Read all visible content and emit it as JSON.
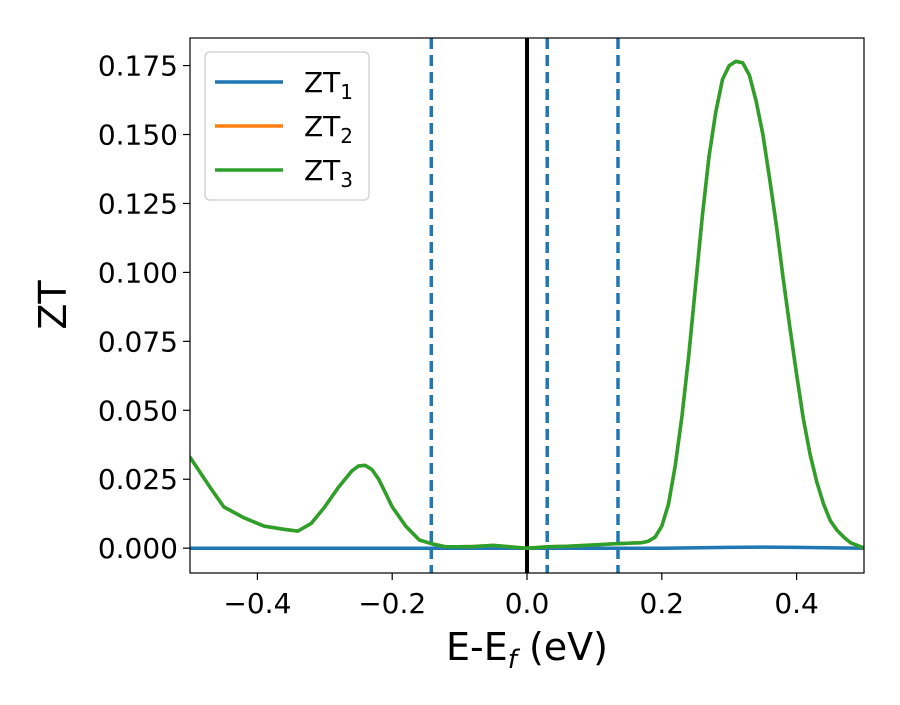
{
  "colors": {
    "series1": "#1f77b4",
    "series2": "#ff7f0e",
    "series3": "#2ca02c",
    "vline_solid": "#000000",
    "vline_dashed": "#1f77b4"
  },
  "chart_data": {
    "type": "line",
    "xlabel": "E-E",
    "xlabel_sub": "f",
    "xlabel_tail": " (eV)",
    "ylabel": "ZT",
    "xlim": [
      -0.5,
      0.5
    ],
    "ylim": [
      -0.009,
      0.185
    ],
    "grid": false,
    "legend_position": "top-left",
    "x_ticks": [
      -0.4,
      -0.2,
      0.0,
      0.2,
      0.4
    ],
    "x_tick_labels": [
      "−0.4",
      "−0.2",
      "0.0",
      "0.2",
      "0.4"
    ],
    "y_ticks": [
      0.0,
      0.025,
      0.05,
      0.075,
      0.1,
      0.125,
      0.15,
      0.175
    ],
    "y_tick_labels": [
      "0.000",
      "0.025",
      "0.050",
      "0.075",
      "0.100",
      "0.125",
      "0.150",
      "0.175"
    ],
    "vertical_lines": [
      {
        "x": 0.0,
        "style": "solid"
      },
      {
        "x": -0.142,
        "style": "dashed"
      },
      {
        "x": 0.03,
        "style": "dashed"
      },
      {
        "x": 0.135,
        "style": "dashed"
      }
    ],
    "series": [
      {
        "name": "ZT",
        "sub": "1",
        "color_key": "series1",
        "x": [
          -0.5,
          -0.3,
          -0.1,
          0.0,
          0.1,
          0.2,
          0.3,
          0.35,
          0.4,
          0.5
        ],
        "y": [
          0.0,
          0.0,
          0.0,
          0.0,
          0.0,
          0.0,
          0.0003,
          0.0004,
          0.0003,
          0.0
        ]
      },
      {
        "name": "ZT",
        "sub": "2",
        "color_key": "series2",
        "x": [
          -0.5,
          -0.47,
          -0.45,
          -0.42,
          -0.39,
          -0.36,
          -0.34,
          -0.32,
          -0.3,
          -0.28,
          -0.26,
          -0.25,
          -0.24,
          -0.23,
          -0.22,
          -0.21,
          -0.2,
          -0.18,
          -0.16,
          -0.14,
          -0.12,
          -0.1,
          -0.08,
          -0.05,
          -0.03,
          0.0,
          0.03,
          0.06,
          0.1,
          0.13,
          0.15,
          0.17,
          0.18,
          0.19,
          0.2,
          0.21,
          0.22,
          0.23,
          0.24,
          0.25,
          0.26,
          0.27,
          0.28,
          0.29,
          0.3,
          0.31,
          0.32,
          0.33,
          0.34,
          0.35,
          0.36,
          0.37,
          0.38,
          0.39,
          0.4,
          0.41,
          0.42,
          0.43,
          0.44,
          0.45,
          0.46,
          0.47,
          0.48,
          0.49,
          0.5
        ],
        "y": [
          0.033,
          0.022,
          0.015,
          0.011,
          0.008,
          0.0068,
          0.0062,
          0.009,
          0.015,
          0.022,
          0.028,
          0.0298,
          0.03,
          0.0285,
          0.025,
          0.02,
          0.015,
          0.008,
          0.003,
          0.0015,
          0.0005,
          0.0005,
          0.0006,
          0.001,
          0.0006,
          0.0,
          0.0005,
          0.0007,
          0.0012,
          0.0016,
          0.0018,
          0.002,
          0.0025,
          0.004,
          0.008,
          0.016,
          0.03,
          0.048,
          0.07,
          0.095,
          0.12,
          0.142,
          0.158,
          0.17,
          0.175,
          0.1765,
          0.176,
          0.1715,
          0.162,
          0.15,
          0.134,
          0.117,
          0.098,
          0.08,
          0.063,
          0.047,
          0.034,
          0.024,
          0.016,
          0.01,
          0.0065,
          0.004,
          0.002,
          0.001,
          0.0
        ]
      },
      {
        "name": "ZT",
        "sub": "3",
        "color_key": "series3",
        "x": [
          -0.5,
          -0.47,
          -0.45,
          -0.42,
          -0.39,
          -0.36,
          -0.34,
          -0.32,
          -0.3,
          -0.28,
          -0.26,
          -0.25,
          -0.24,
          -0.23,
          -0.22,
          -0.21,
          -0.2,
          -0.18,
          -0.16,
          -0.14,
          -0.12,
          -0.1,
          -0.08,
          -0.05,
          -0.03,
          0.0,
          0.03,
          0.06,
          0.1,
          0.13,
          0.15,
          0.17,
          0.18,
          0.19,
          0.2,
          0.21,
          0.22,
          0.23,
          0.24,
          0.25,
          0.26,
          0.27,
          0.28,
          0.29,
          0.3,
          0.31,
          0.32,
          0.33,
          0.34,
          0.35,
          0.36,
          0.37,
          0.38,
          0.39,
          0.4,
          0.41,
          0.42,
          0.43,
          0.44,
          0.45,
          0.46,
          0.47,
          0.48,
          0.49,
          0.5
        ],
        "y": [
          0.033,
          0.022,
          0.015,
          0.011,
          0.008,
          0.0068,
          0.0062,
          0.009,
          0.015,
          0.022,
          0.028,
          0.0298,
          0.03,
          0.0285,
          0.025,
          0.02,
          0.015,
          0.008,
          0.003,
          0.0015,
          0.0005,
          0.0005,
          0.0006,
          0.001,
          0.0006,
          0.0,
          0.0005,
          0.0007,
          0.0012,
          0.0016,
          0.0018,
          0.002,
          0.0025,
          0.004,
          0.008,
          0.016,
          0.03,
          0.048,
          0.07,
          0.095,
          0.12,
          0.142,
          0.158,
          0.17,
          0.175,
          0.1765,
          0.176,
          0.1715,
          0.162,
          0.15,
          0.134,
          0.117,
          0.098,
          0.08,
          0.063,
          0.047,
          0.034,
          0.024,
          0.016,
          0.01,
          0.0065,
          0.004,
          0.002,
          0.001,
          0.0
        ]
      }
    ]
  }
}
